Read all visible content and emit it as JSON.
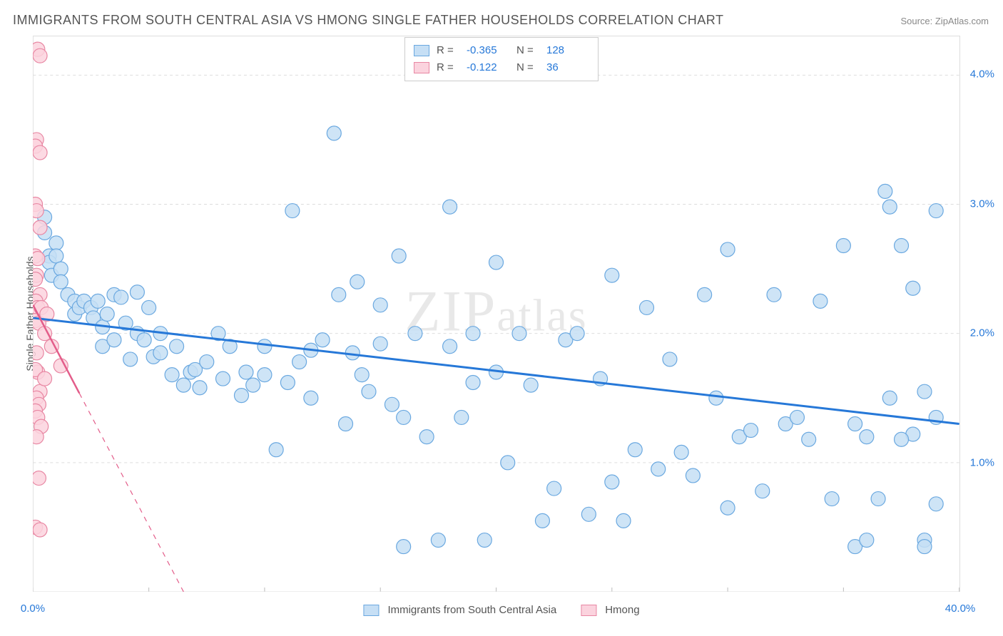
{
  "title": "IMMIGRANTS FROM SOUTH CENTRAL ASIA VS HMONG SINGLE FATHER HOUSEHOLDS CORRELATION CHART",
  "source": "Source: ZipAtlas.com",
  "watermark": "ZIPatlas",
  "y_axis_label": "Single Father Households",
  "chart": {
    "type": "scatter",
    "xlim": [
      0,
      40
    ],
    "ylim": [
      0,
      4.3
    ],
    "x_ticks": [
      0,
      20,
      40
    ],
    "x_tick_labels": [
      "0.0%",
      "",
      "40.0%"
    ],
    "x_minor_ticks": [
      5,
      10,
      15,
      25,
      30,
      35
    ],
    "y_ticks": [
      1,
      2,
      3,
      4
    ],
    "y_tick_labels": [
      "1.0%",
      "2.0%",
      "3.0%",
      "4.0%"
    ],
    "background_color": "#ffffff",
    "grid_color": "#dddddd",
    "grid_dash": "4,4",
    "border_color": "#dddddd",
    "series": [
      {
        "id": "sca",
        "label": "Immigrants from South Central Asia",
        "marker_fill": "#c6dff5",
        "marker_stroke": "#6aa8e0",
        "marker_radius": 10,
        "marker_opacity": 0.85,
        "trend_color": "#2678d8",
        "trend_width": 3,
        "trend_dash_after_x": null,
        "trend": {
          "x1": 0,
          "y1": 2.12,
          "x2": 40,
          "y2": 1.3
        },
        "R": "-0.365",
        "N": "128",
        "points": [
          [
            0.5,
            2.9
          ],
          [
            0.5,
            2.78
          ],
          [
            0.7,
            2.6
          ],
          [
            0.7,
            2.55
          ],
          [
            0.8,
            2.45
          ],
          [
            1.0,
            2.7
          ],
          [
            1.0,
            2.6
          ],
          [
            1.2,
            2.5
          ],
          [
            1.2,
            2.4
          ],
          [
            1.5,
            2.3
          ],
          [
            1.8,
            2.25
          ],
          [
            1.8,
            2.15
          ],
          [
            2.0,
            2.2
          ],
          [
            2.2,
            2.25
          ],
          [
            2.5,
            2.2
          ],
          [
            2.6,
            2.12
          ],
          [
            2.8,
            2.25
          ],
          [
            3.0,
            1.9
          ],
          [
            3.0,
            2.05
          ],
          [
            3.2,
            2.15
          ],
          [
            3.5,
            1.95
          ],
          [
            3.5,
            2.3
          ],
          [
            3.8,
            2.28
          ],
          [
            4.0,
            2.08
          ],
          [
            4.2,
            1.8
          ],
          [
            4.5,
            2.32
          ],
          [
            4.5,
            2.0
          ],
          [
            4.8,
            1.95
          ],
          [
            5.0,
            2.2
          ],
          [
            5.2,
            1.82
          ],
          [
            5.5,
            1.85
          ],
          [
            5.5,
            2.0
          ],
          [
            6.0,
            1.68
          ],
          [
            6.2,
            1.9
          ],
          [
            6.5,
            1.6
          ],
          [
            6.8,
            1.7
          ],
          [
            7.0,
            1.72
          ],
          [
            7.2,
            1.58
          ],
          [
            7.5,
            1.78
          ],
          [
            8.0,
            2.0
          ],
          [
            8.2,
            1.65
          ],
          [
            8.5,
            1.9
          ],
          [
            9.0,
            1.52
          ],
          [
            9.2,
            1.7
          ],
          [
            9.5,
            1.6
          ],
          [
            10.0,
            1.9
          ],
          [
            10.0,
            1.68
          ],
          [
            10.5,
            1.1
          ],
          [
            11.0,
            1.62
          ],
          [
            11.2,
            2.95
          ],
          [
            11.5,
            1.78
          ],
          [
            12.0,
            1.5
          ],
          [
            12.0,
            1.87
          ],
          [
            12.5,
            1.95
          ],
          [
            13.0,
            3.55
          ],
          [
            13.2,
            2.3
          ],
          [
            13.5,
            1.3
          ],
          [
            13.8,
            1.85
          ],
          [
            14.0,
            2.4
          ],
          [
            14.2,
            1.68
          ],
          [
            14.5,
            1.55
          ],
          [
            15.0,
            1.92
          ],
          [
            15.0,
            2.22
          ],
          [
            15.5,
            1.45
          ],
          [
            15.8,
            2.6
          ],
          [
            16.0,
            1.35
          ],
          [
            16.0,
            0.35
          ],
          [
            16.5,
            2.0
          ],
          [
            17.0,
            1.2
          ],
          [
            17.5,
            0.4
          ],
          [
            18.0,
            2.98
          ],
          [
            18.0,
            1.9
          ],
          [
            18.5,
            1.35
          ],
          [
            19.0,
            2.0
          ],
          [
            19.0,
            1.62
          ],
          [
            19.5,
            0.4
          ],
          [
            20.0,
            2.55
          ],
          [
            20.0,
            1.7
          ],
          [
            20.5,
            1.0
          ],
          [
            21.0,
            2.0
          ],
          [
            21.5,
            1.6
          ],
          [
            22.0,
            0.55
          ],
          [
            22.5,
            0.8
          ],
          [
            23.0,
            1.95
          ],
          [
            23.5,
            2.0
          ],
          [
            24.0,
            0.6
          ],
          [
            24.5,
            1.65
          ],
          [
            25.0,
            2.45
          ],
          [
            25.0,
            0.85
          ],
          [
            25.5,
            0.55
          ],
          [
            26.0,
            1.1
          ],
          [
            26.5,
            2.2
          ],
          [
            27.0,
            0.95
          ],
          [
            27.5,
            1.8
          ],
          [
            28.0,
            1.08
          ],
          [
            28.5,
            0.9
          ],
          [
            29.0,
            2.3
          ],
          [
            29.5,
            1.5
          ],
          [
            30.0,
            0.65
          ],
          [
            30.0,
            2.65
          ],
          [
            30.5,
            1.2
          ],
          [
            31.0,
            1.25
          ],
          [
            31.5,
            0.78
          ],
          [
            32.0,
            2.3
          ],
          [
            32.5,
            1.3
          ],
          [
            33.0,
            1.35
          ],
          [
            33.5,
            1.18
          ],
          [
            34.0,
            2.25
          ],
          [
            34.5,
            0.72
          ],
          [
            35.0,
            2.68
          ],
          [
            35.5,
            0.35
          ],
          [
            35.5,
            1.3
          ],
          [
            36.0,
            0.4
          ],
          [
            36.5,
            0.72
          ],
          [
            36.8,
            3.1
          ],
          [
            37.0,
            2.98
          ],
          [
            37.0,
            1.5
          ],
          [
            37.5,
            2.68
          ],
          [
            38.0,
            2.35
          ],
          [
            38.0,
            1.22
          ],
          [
            38.5,
            0.4
          ],
          [
            38.5,
            0.35
          ],
          [
            38.5,
            1.55
          ],
          [
            39.0,
            0.68
          ],
          [
            39.0,
            2.95
          ],
          [
            39.0,
            1.35
          ],
          [
            37.5,
            1.18
          ],
          [
            36.0,
            1.2
          ]
        ]
      },
      {
        "id": "hmong",
        "label": "Hmong",
        "marker_fill": "#fbd3de",
        "marker_stroke": "#e887a3",
        "marker_radius": 10,
        "marker_opacity": 0.85,
        "trend_color": "#e35d8a",
        "trend_width": 2.5,
        "trend_dash_after_x": 2,
        "trend": {
          "x1": 0,
          "y1": 2.22,
          "x2": 6.5,
          "y2": 0
        },
        "R": "-0.122",
        "N": "36",
        "points": [
          [
            0.2,
            4.2
          ],
          [
            0.3,
            4.15
          ],
          [
            0.15,
            3.5
          ],
          [
            0.1,
            3.45
          ],
          [
            0.3,
            3.4
          ],
          [
            0.1,
            3.0
          ],
          [
            0.15,
            2.95
          ],
          [
            0.3,
            2.82
          ],
          [
            0.1,
            2.6
          ],
          [
            0.2,
            2.58
          ],
          [
            0.15,
            2.45
          ],
          [
            0.1,
            2.42
          ],
          [
            0.3,
            2.3
          ],
          [
            0.12,
            2.25
          ],
          [
            0.2,
            2.2
          ],
          [
            0.1,
            2.1
          ],
          [
            0.25,
            2.08
          ],
          [
            0.35,
            2.2
          ],
          [
            0.15,
            1.85
          ],
          [
            0.2,
            1.7
          ],
          [
            0.1,
            1.72
          ],
          [
            0.3,
            1.55
          ],
          [
            0.15,
            1.5
          ],
          [
            0.25,
            1.45
          ],
          [
            0.1,
            1.4
          ],
          [
            0.2,
            1.35
          ],
          [
            0.35,
            1.28
          ],
          [
            0.15,
            1.2
          ],
          [
            0.25,
            0.88
          ],
          [
            0.1,
            0.5
          ],
          [
            0.3,
            0.48
          ],
          [
            0.5,
            2.0
          ],
          [
            0.5,
            1.65
          ],
          [
            0.6,
            2.15
          ],
          [
            0.8,
            1.9
          ],
          [
            1.2,
            1.75
          ]
        ]
      }
    ]
  },
  "legend_top_rows": [
    {
      "swatch_fill": "#c6dff5",
      "swatch_stroke": "#6aa8e0",
      "R": "-0.365",
      "N": "128"
    },
    {
      "swatch_fill": "#fbd3de",
      "swatch_stroke": "#e887a3",
      "R": "-0.122",
      "N": "36"
    }
  ],
  "legend_bottom": [
    {
      "swatch_fill": "#c6dff5",
      "swatch_stroke": "#6aa8e0",
      "label": "Immigrants from South Central Asia"
    },
    {
      "swatch_fill": "#fbd3de",
      "swatch_stroke": "#e887a3",
      "label": "Hmong"
    }
  ]
}
